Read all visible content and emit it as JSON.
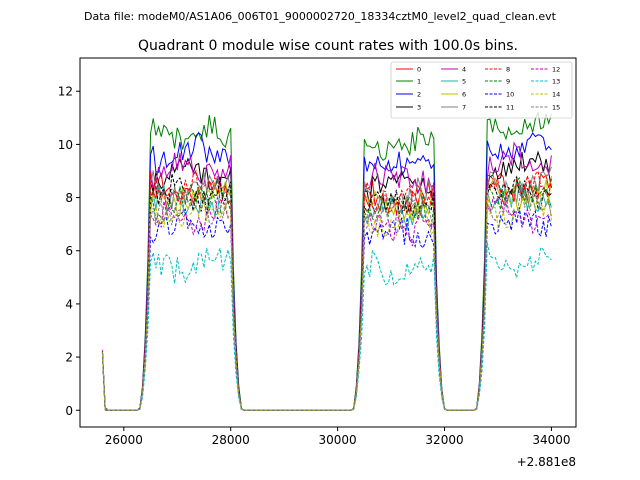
{
  "figure": {
    "suptitle": "Data file: modeM0/AS1A06_006T01_9000002720_18334cztM0_level2_quad_clean.evt"
  },
  "chart_data": {
    "type": "line",
    "title": "Quadrant 0 module wise count rates with 100.0s bins.",
    "xlabel": "",
    "ylabel": "",
    "x_offset_label": "+2.881e8",
    "xlim": [
      25180,
      34460
    ],
    "ylim": [
      -0.63,
      13.25
    ],
    "xticks": [
      26000,
      28000,
      30000,
      32000,
      34000
    ],
    "xtick_labels": [
      "26000",
      "28000",
      "30000",
      "32000",
      "34000"
    ],
    "yticks": [
      0,
      2,
      4,
      6,
      8,
      10,
      12
    ],
    "ytick_labels": [
      "0",
      "2",
      "4",
      "6",
      "8",
      "10",
      "12"
    ],
    "legend_position": "top-right",
    "on_segments": [
      [
        26500,
        28000
      ],
      [
        30500,
        31800
      ],
      [
        32800,
        34000
      ]
    ],
    "series": [
      {
        "name": "0",
        "color": "#ff0000",
        "dash": "solid",
        "level": 8.2,
        "seed": 1
      },
      {
        "name": "1",
        "color": "#008000",
        "dash": "solid",
        "level": 10.4,
        "seed": 2
      },
      {
        "name": "2",
        "color": "#0000ff",
        "dash": "solid",
        "level": 9.6,
        "seed": 3
      },
      {
        "name": "3",
        "color": "#000000",
        "dash": "solid",
        "level": 8.9,
        "seed": 4
      },
      {
        "name": "4",
        "color": "#bf00bf",
        "dash": "solid",
        "level": 9.1,
        "seed": 5
      },
      {
        "name": "5",
        "color": "#20b2aa",
        "dash": "solid",
        "level": 7.8,
        "seed": 6
      },
      {
        "name": "6",
        "color": "#bfbf00",
        "dash": "solid",
        "level": 8.0,
        "seed": 7
      },
      {
        "name": "7",
        "color": "#808080",
        "dash": "solid",
        "level": 8.3,
        "seed": 8
      },
      {
        "name": "8",
        "color": "#ff0000",
        "dash": "dashed",
        "level": 8.3,
        "seed": 9
      },
      {
        "name": "9",
        "color": "#008000",
        "dash": "dashed",
        "level": 7.9,
        "seed": 10
      },
      {
        "name": "10",
        "color": "#0000ff",
        "dash": "dashed",
        "level": 6.9,
        "seed": 11
      },
      {
        "name": "11",
        "color": "#000000",
        "dash": "dashed",
        "level": 8.1,
        "seed": 12
      },
      {
        "name": "12",
        "color": "#bf00bf",
        "dash": "dashed",
        "level": 7.2,
        "seed": 13
      },
      {
        "name": "13",
        "color": "#00bfbf",
        "dash": "dashed",
        "level": 5.5,
        "seed": 14
      },
      {
        "name": "14",
        "color": "#bfbf00",
        "dash": "dashed",
        "level": 7.4,
        "seed": 15
      },
      {
        "name": "15",
        "color": "#808080",
        "dash": "dashed",
        "level": 7.6,
        "seed": 16
      }
    ]
  }
}
